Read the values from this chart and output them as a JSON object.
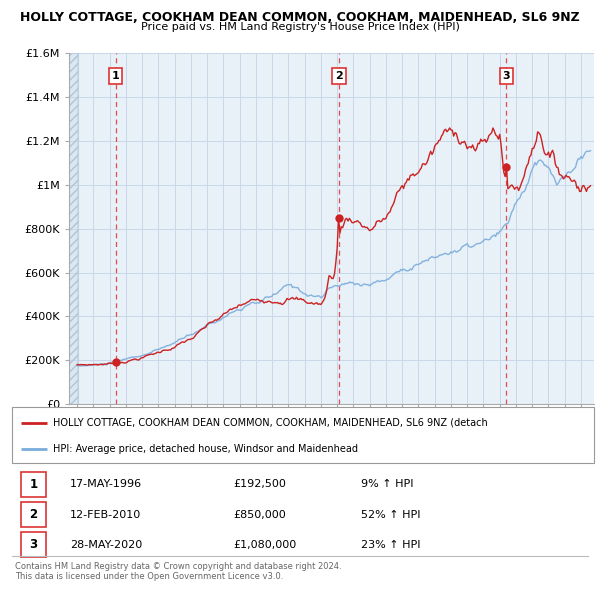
{
  "title": "HOLLY COTTAGE, COOKHAM DEAN COMMON, COOKHAM, MAIDENHEAD, SL6 9NZ",
  "subtitle": "Price paid vs. HM Land Registry's House Price Index (HPI)",
  "hpi_label": "HPI: Average price, detached house, Windsor and Maidenhead",
  "property_label": "HOLLY COTTAGE, COOKHAM DEAN COMMON, COOKHAM, MAIDENHEAD, SL6 9NZ (detach",
  "sale_date_strs": [
    "17-MAY-1996",
    "12-FEB-2010",
    "28-MAY-2020"
  ],
  "sale_price_strs": [
    "£192,500",
    "£850,000",
    "£1,080,000"
  ],
  "sale_pct_strs": [
    "9% ↑ HPI",
    "52% ↑ HPI",
    "23% ↑ HPI"
  ],
  "sale_labels": [
    "1",
    "2",
    "3"
  ],
  "sale_prices": [
    192500,
    850000,
    1080000
  ],
  "sale_year_floats": [
    1996.37,
    2010.12,
    2020.41
  ],
  "ylim": [
    0,
    1600000
  ],
  "yticks": [
    0,
    200000,
    400000,
    600000,
    800000,
    1000000,
    1200000,
    1400000,
    1600000
  ],
  "ytick_labels": [
    "£0",
    "£200K",
    "£400K",
    "£600K",
    "£800K",
    "£1M",
    "£1.2M",
    "£1.4M",
    "£1.6M"
  ],
  "xlim_start": 1993.5,
  "xlim_end": 2025.8,
  "hpi_color": "#7aacdb",
  "property_color": "#cc2222",
  "vline_color": "#dd3333",
  "grid_color": "#c8d8e8",
  "hatch_color": "#dce8f0",
  "bg_color": "#e8f0f8",
  "footer_text": "Contains HM Land Registry data © Crown copyright and database right 2024.\nThis data is licensed under the Open Government Licence v3.0."
}
